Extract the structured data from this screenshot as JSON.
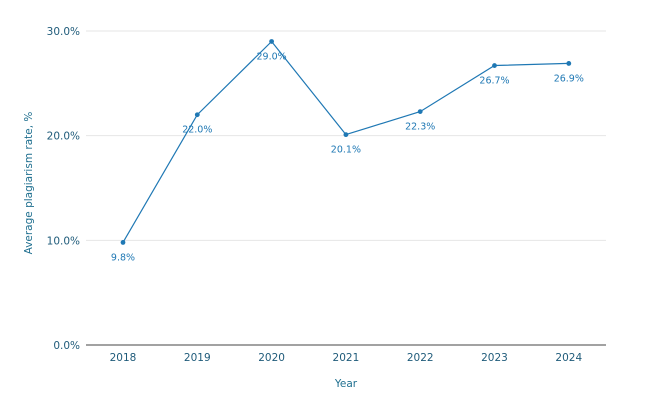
{
  "chart_data": {
    "type": "line",
    "title": "",
    "xlabel": "Year",
    "ylabel": "Average plagiarism rate, %",
    "categories": [
      "2018",
      "2019",
      "2020",
      "2021",
      "2022",
      "2023",
      "2024"
    ],
    "series": [
      {
        "values": [
          9.8,
          22.0,
          29.0,
          20.1,
          22.3,
          26.7,
          26.9
        ],
        "labels": [
          "9.8%",
          "22.0%",
          "29.0%",
          "20.1%",
          "22.3%",
          "26.7%",
          "26.9%"
        ],
        "color": "#1f78b4"
      }
    ],
    "ylim": [
      0,
      30
    ],
    "yticks": [
      0,
      10,
      20,
      30
    ],
    "ytick_labels": [
      "0.0%",
      "10.0%",
      "20.0%",
      "30.0%"
    ],
    "grid": true,
    "legend": "none"
  }
}
